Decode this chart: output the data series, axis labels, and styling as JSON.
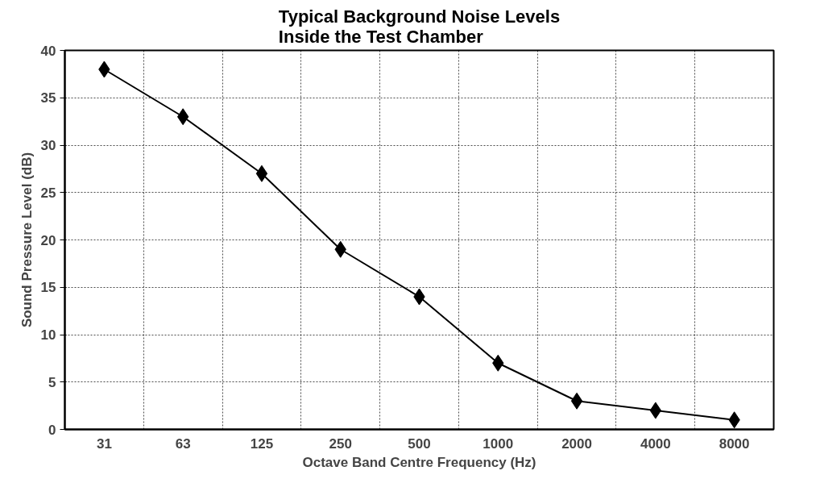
{
  "chart_data": {
    "type": "line",
    "title": "Typical Background Noise Levels\nInside the Test Chamber",
    "xlabel": "Octave Band Centre Frequency (Hz)",
    "ylabel": "Sound Pressure Level (dB)",
    "categories": [
      "31",
      "63",
      "125",
      "250",
      "500",
      "1000",
      "2000",
      "4000",
      "8000"
    ],
    "series": [
      {
        "color": "#000000",
        "values": [
          38,
          33,
          27,
          19,
          14,
          7,
          3,
          2,
          1
        ]
      }
    ],
    "ylim": [
      0,
      40
    ],
    "yticks": [
      0,
      5,
      10,
      15,
      20,
      25,
      30,
      35,
      40
    ],
    "grid": true,
    "marker": "diamond",
    "line_style": "solid"
  }
}
